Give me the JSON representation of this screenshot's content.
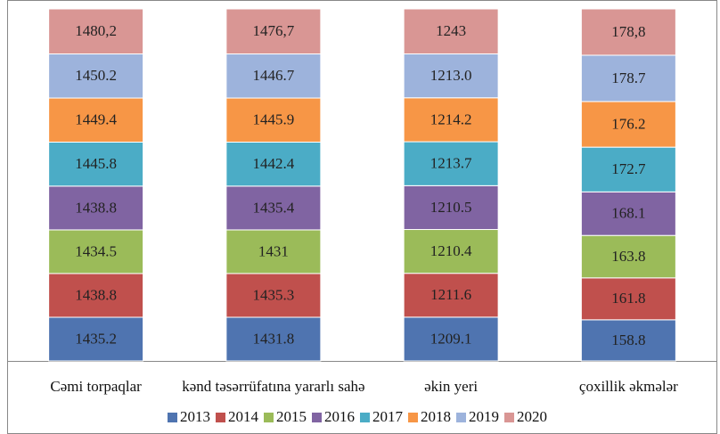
{
  "chart_data": {
    "type": "bar",
    "stacking": "percent",
    "categories": [
      "Cəmi torpaqlar",
      "kənd təsərrüfatına yararlı sahə",
      "əkin yeri",
      "çoxillik əkmələr"
    ],
    "series": [
      {
        "name": "2013",
        "color": "#4f74b0",
        "values": [
          1435.2,
          1431.8,
          1209.1,
          158.8
        ],
        "value_labels": [
          "1435.2",
          "1431.8",
          "1209.1",
          "158.8"
        ]
      },
      {
        "name": "2014",
        "color": "#c0504d",
        "values": [
          1438.8,
          1435.3,
          1211.6,
          161.8
        ],
        "value_labels": [
          "1438.8",
          "1435.3",
          "1211.6",
          "161.8"
        ]
      },
      {
        "name": "2015",
        "color": "#9bbb59",
        "values": [
          1434.5,
          1431,
          1210.4,
          163.8
        ],
        "value_labels": [
          "1434.5",
          "1431",
          "1210.4",
          "163.8"
        ]
      },
      {
        "name": "2016",
        "color": "#8064a2",
        "values": [
          1438.8,
          1435.4,
          1210.5,
          168.1
        ],
        "value_labels": [
          "1438.8",
          "1435.4",
          "1210.5",
          "168.1"
        ]
      },
      {
        "name": "2017",
        "color": "#4bacc6",
        "values": [
          1445.8,
          1442.4,
          1213.7,
          172.7
        ],
        "value_labels": [
          "1445.8",
          "1442.4",
          "1213.7",
          "172.7"
        ]
      },
      {
        "name": "2018",
        "color": "#f79646",
        "values": [
          1449.4,
          1445.9,
          1214.2,
          176.2
        ],
        "value_labels": [
          "1449.4",
          "1445.9",
          "1214.2",
          "176.2"
        ]
      },
      {
        "name": "2019",
        "color": "#9db3dc",
        "values": [
          1450.2,
          1446.7,
          1213.0,
          178.7
        ],
        "value_labels": [
          "1450.2",
          "1446.7",
          "1213.0",
          "178.7"
        ]
      },
      {
        "name": "2020",
        "color": "#d99694",
        "values": [
          1480.2,
          1476.7,
          1243,
          178.8
        ],
        "value_labels": [
          "1480,2",
          "1476,7",
          "1243",
          "178,8"
        ]
      }
    ],
    "legend": "bottom"
  }
}
